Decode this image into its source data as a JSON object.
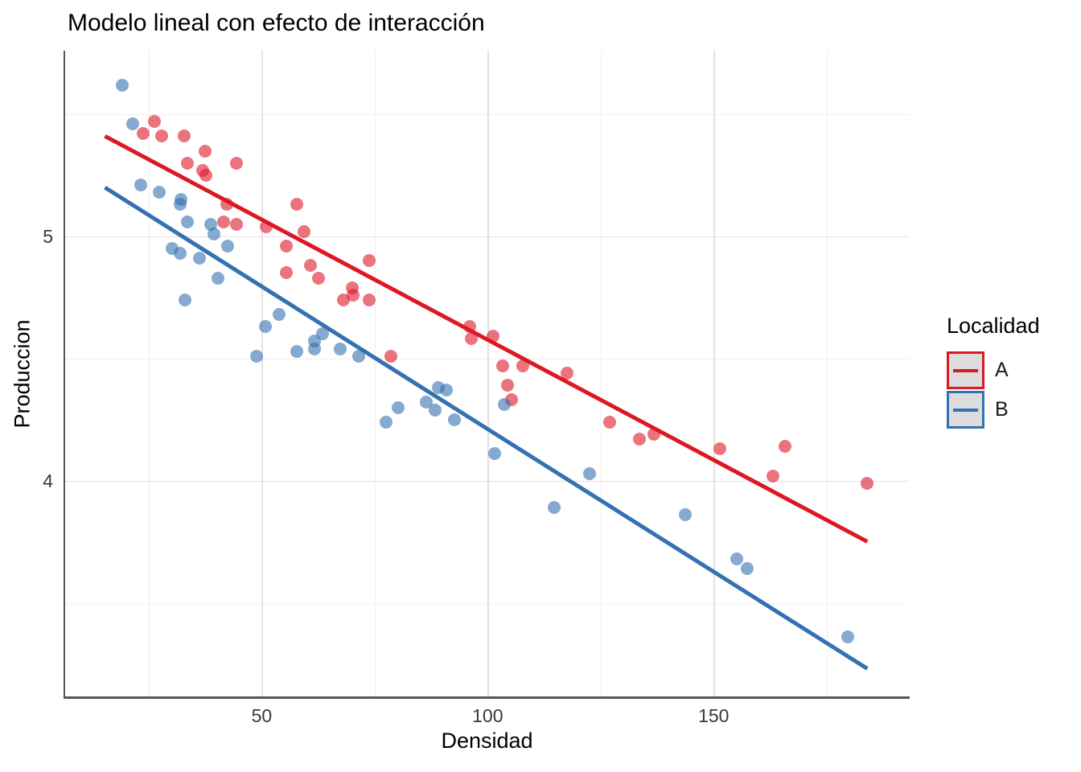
{
  "title": "Modelo lineal con efecto de interacción",
  "axes": {
    "x": {
      "label": "Densidad",
      "tick_labels": [
        "50",
        "100",
        "150"
      ]
    },
    "y": {
      "label": "Produccion",
      "tick_labels": [
        "5",
        "4"
      ]
    }
  },
  "legend": {
    "title": "Localidad",
    "entries": [
      {
        "label": "A",
        "color": "#dc1822"
      },
      {
        "label": "B",
        "color": "#3371b1"
      }
    ]
  },
  "colors": {
    "background": "#ffffff",
    "axis_line": "#555555",
    "grid_major": "#e2e2e2",
    "grid_minor": "#efefef",
    "point_a": "rgba(222,22,40,0.6)",
    "point_b": "rgba(52,112,175,0.6)",
    "line_a": "#dc1822",
    "line_b": "#3371b1",
    "legend_key_fill": "#dcdcdc"
  },
  "chart_data": {
    "type": "scatter",
    "title": "Modelo lineal con efecto de interacción",
    "xlabel": "Densidad",
    "ylabel": "Produccion",
    "xlim": [
      6.5,
      193.2
    ],
    "ylim": [
      3.11,
      5.76
    ],
    "x_ticks": [
      50,
      100,
      150
    ],
    "y_ticks": [
      5,
      4
    ],
    "x_minor": [
      25,
      75,
      125,
      175
    ],
    "y_minor": [
      5.5,
      4.5,
      3.5
    ],
    "grid": true,
    "legend_title": "Localidad",
    "legend_position": "right",
    "series": [
      {
        "name": "A",
        "line_color": "#dc1822",
        "point_color": "rgba(222,22,40,0.6)",
        "trend_line": {
          "x1": 15.3,
          "y1": 5.41,
          "x2": 184.0,
          "y2": 3.75
        },
        "points": [
          [
            23.7,
            5.42
          ],
          [
            26.3,
            5.47
          ],
          [
            27.8,
            5.41
          ],
          [
            32.9,
            5.41
          ],
          [
            37.5,
            5.35
          ],
          [
            33.5,
            5.3
          ],
          [
            37.0,
            5.27
          ],
          [
            37.6,
            5.25
          ],
          [
            44.4,
            5.3
          ],
          [
            42.2,
            5.13
          ],
          [
            41.6,
            5.06
          ],
          [
            44.4,
            5.05
          ],
          [
            51.0,
            5.04
          ],
          [
            57.8,
            5.13
          ],
          [
            59.3,
            5.02
          ],
          [
            55.5,
            4.96
          ],
          [
            55.5,
            4.85
          ],
          [
            60.7,
            4.88
          ],
          [
            62.6,
            4.83
          ],
          [
            68.0,
            4.74
          ],
          [
            70.1,
            4.79
          ],
          [
            70.3,
            4.76
          ],
          [
            73.8,
            4.74
          ],
          [
            73.8,
            4.9
          ],
          [
            78.6,
            4.51
          ],
          [
            96.1,
            4.63
          ],
          [
            96.4,
            4.58
          ],
          [
            101.2,
            4.59
          ],
          [
            103.4,
            4.47
          ],
          [
            107.8,
            4.47
          ],
          [
            104.3,
            4.39
          ],
          [
            105.3,
            4.33
          ],
          [
            117.6,
            4.44
          ],
          [
            127.0,
            4.24
          ],
          [
            133.6,
            4.17
          ],
          [
            136.8,
            4.19
          ],
          [
            151.4,
            4.13
          ],
          [
            163.2,
            4.02
          ],
          [
            165.8,
            4.14
          ],
          [
            184.0,
            3.99
          ]
        ]
      },
      {
        "name": "B",
        "line_color": "#3371b1",
        "point_color": "rgba(52,112,175,0.6)",
        "trend_line": {
          "x1": 15.3,
          "y1": 5.2,
          "x2": 184.0,
          "y2": 3.23
        },
        "points": [
          [
            19.1,
            5.62
          ],
          [
            21.4,
            5.46
          ],
          [
            23.3,
            5.21
          ],
          [
            27.4,
            5.18
          ],
          [
            32.2,
            5.15
          ],
          [
            31.9,
            5.13
          ],
          [
            33.6,
            5.06
          ],
          [
            38.8,
            5.05
          ],
          [
            39.5,
            5.01
          ],
          [
            30.1,
            4.95
          ],
          [
            31.9,
            4.93
          ],
          [
            36.3,
            4.91
          ],
          [
            42.4,
            4.96
          ],
          [
            40.4,
            4.83
          ],
          [
            33.1,
            4.74
          ],
          [
            48.8,
            4.51
          ],
          [
            50.9,
            4.63
          ],
          [
            53.9,
            4.68
          ],
          [
            57.7,
            4.53
          ],
          [
            61.7,
            4.57
          ],
          [
            61.7,
            4.54
          ],
          [
            63.4,
            4.6
          ],
          [
            67.4,
            4.54
          ],
          [
            71.5,
            4.51
          ],
          [
            77.6,
            4.24
          ],
          [
            80.2,
            4.3
          ],
          [
            86.5,
            4.32
          ],
          [
            88.3,
            4.29
          ],
          [
            89.1,
            4.38
          ],
          [
            90.9,
            4.37
          ],
          [
            92.7,
            4.25
          ],
          [
            101.6,
            4.11
          ],
          [
            103.7,
            4.31
          ],
          [
            114.8,
            3.89
          ],
          [
            122.6,
            4.03
          ],
          [
            143.8,
            3.86
          ],
          [
            155.2,
            3.68
          ],
          [
            157.5,
            3.64
          ],
          [
            179.7,
            3.36
          ]
        ]
      }
    ]
  }
}
